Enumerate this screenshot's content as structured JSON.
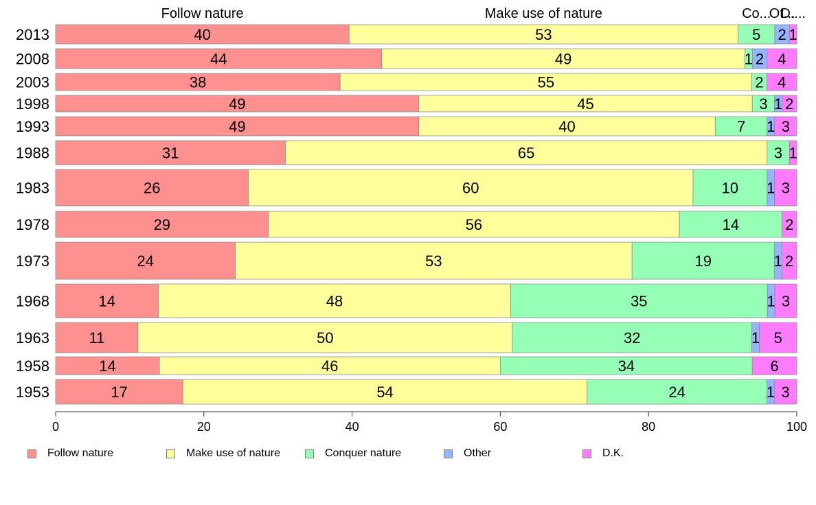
{
  "chart_data": {
    "type": "bar",
    "orientation": "horizontal",
    "stacked": true,
    "variable_width": true,
    "categories": [
      "2013",
      "2008",
      "2003",
      "1998",
      "1993",
      "1988",
      "1983",
      "1978",
      "1973",
      "1968",
      "1963",
      "1958",
      "1953"
    ],
    "series": [
      {
        "name": "Follow nature",
        "color": "#ff9090",
        "values": [
          40,
          44,
          38,
          49,
          49,
          31,
          26,
          29,
          24,
          14,
          11,
          14,
          17
        ]
      },
      {
        "name": "Make use of nature",
        "color": "#ffff9c",
        "values": [
          53,
          49,
          55,
          45,
          40,
          65,
          60,
          56,
          53,
          48,
          50,
          46,
          54
        ]
      },
      {
        "name": "Conquer nature",
        "color": "#94ffb5",
        "values": [
          5,
          1,
          2,
          3,
          7,
          3,
          10,
          14,
          19,
          35,
          32,
          34,
          24
        ]
      },
      {
        "name": "Other",
        "color": "#94b5ff",
        "values": [
          2,
          2,
          0,
          1,
          1,
          0,
          1,
          0,
          1,
          1,
          1,
          0,
          1
        ]
      },
      {
        "name": "D.K.",
        "color": "#ff7bff",
        "values": [
          1,
          4,
          4,
          2,
          3,
          1,
          3,
          2,
          2,
          3,
          5,
          6,
          3
        ]
      }
    ],
    "top_labels": [
      "Follow nature",
      "Make use of nature",
      "Co...",
      "Ot...",
      "D...."
    ],
    "xlim": [
      0,
      100
    ],
    "xticks": [
      "0",
      "20",
      "40",
      "60",
      "80",
      "100"
    ],
    "legend_position": "bottom",
    "grid": false
  }
}
